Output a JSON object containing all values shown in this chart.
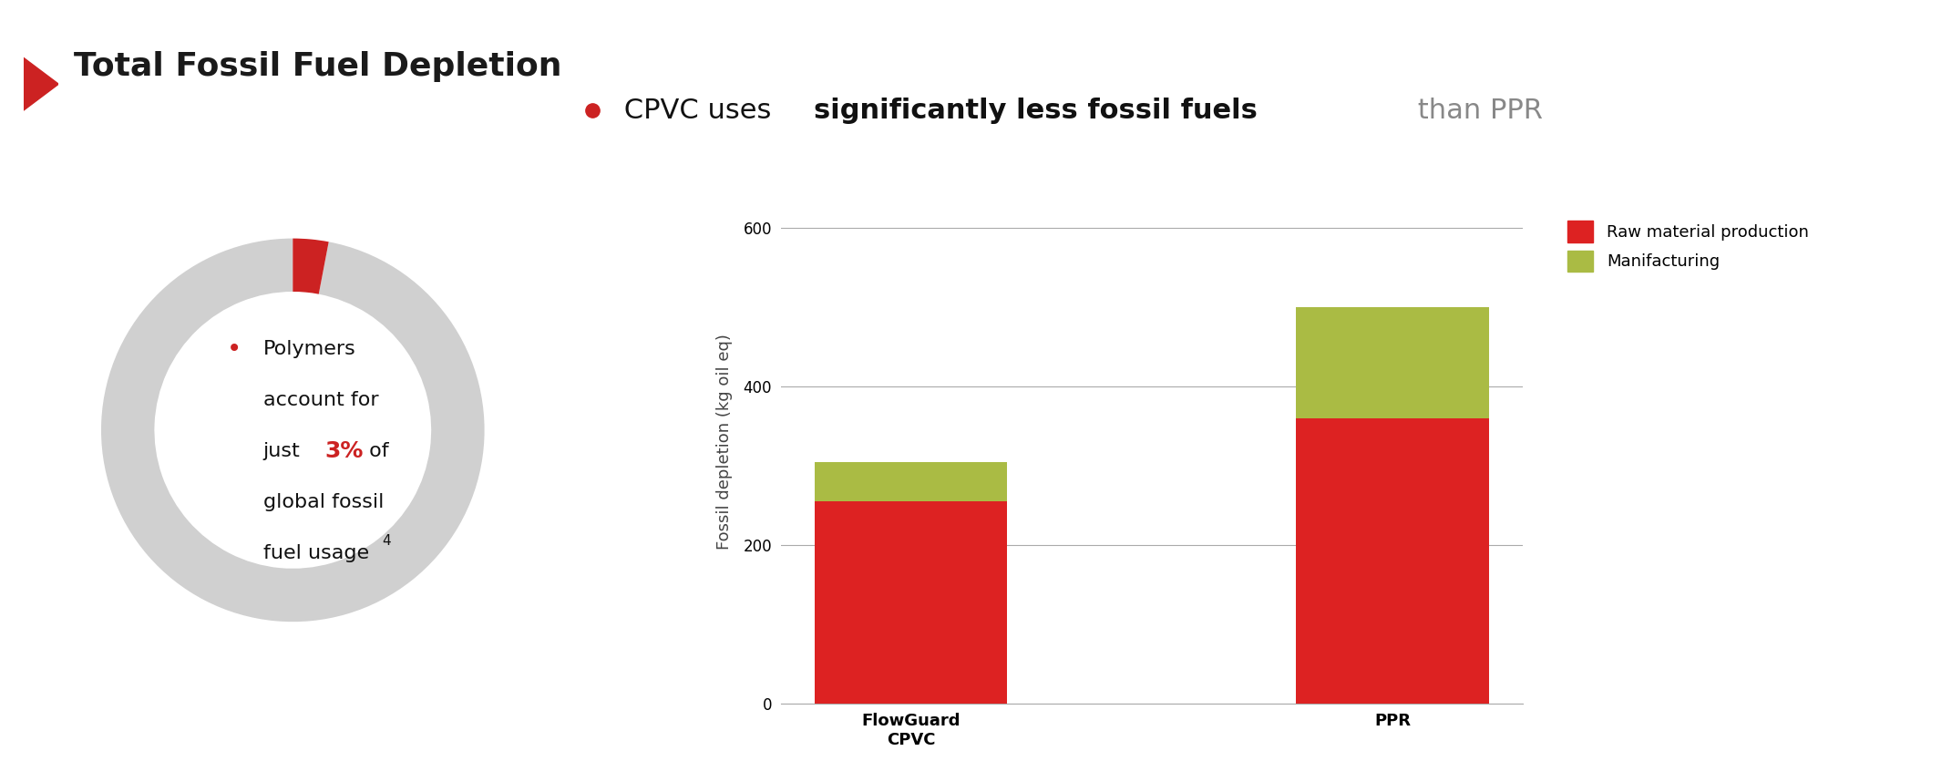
{
  "title": "Total Fossil Fuel Depletion",
  "title_color": "#1a1a1a",
  "title_arrow_color": "#cc2222",
  "bg_color": "#ffffff",
  "donut_gray": "#d0d0d0",
  "donut_red": "#cc2222",
  "donut_pct": 3,
  "bullet_color": "#cc2222",
  "headline_part1": " CPVC uses ",
  "headline_bold": "significantly less fossil fuels",
  "headline_part2": " than PPR",
  "headline_fontsize": 22,
  "bar_categories": [
    "FlowGuard\nCPVC",
    "PPR"
  ],
  "bar_raw": [
    255,
    360
  ],
  "bar_mfg": [
    50,
    140
  ],
  "bar_raw_color": "#dd2222",
  "bar_mfg_color": "#aabb44",
  "ylabel": "Fossil depletion (kg oil eq)",
  "ylim": [
    0,
    660
  ],
  "yticks": [
    0,
    200,
    400,
    600
  ],
  "legend_raw": "Raw material production",
  "legend_mfg": "Manifacturing",
  "grid_color": "#aaaaaa",
  "donut_lines": [
    "Polymers",
    "account for",
    "global fossil",
    "fuel usage"
  ],
  "donut_just": "just ",
  "donut_pct_str": "3%",
  "donut_of": " of",
  "donut_super": "4"
}
